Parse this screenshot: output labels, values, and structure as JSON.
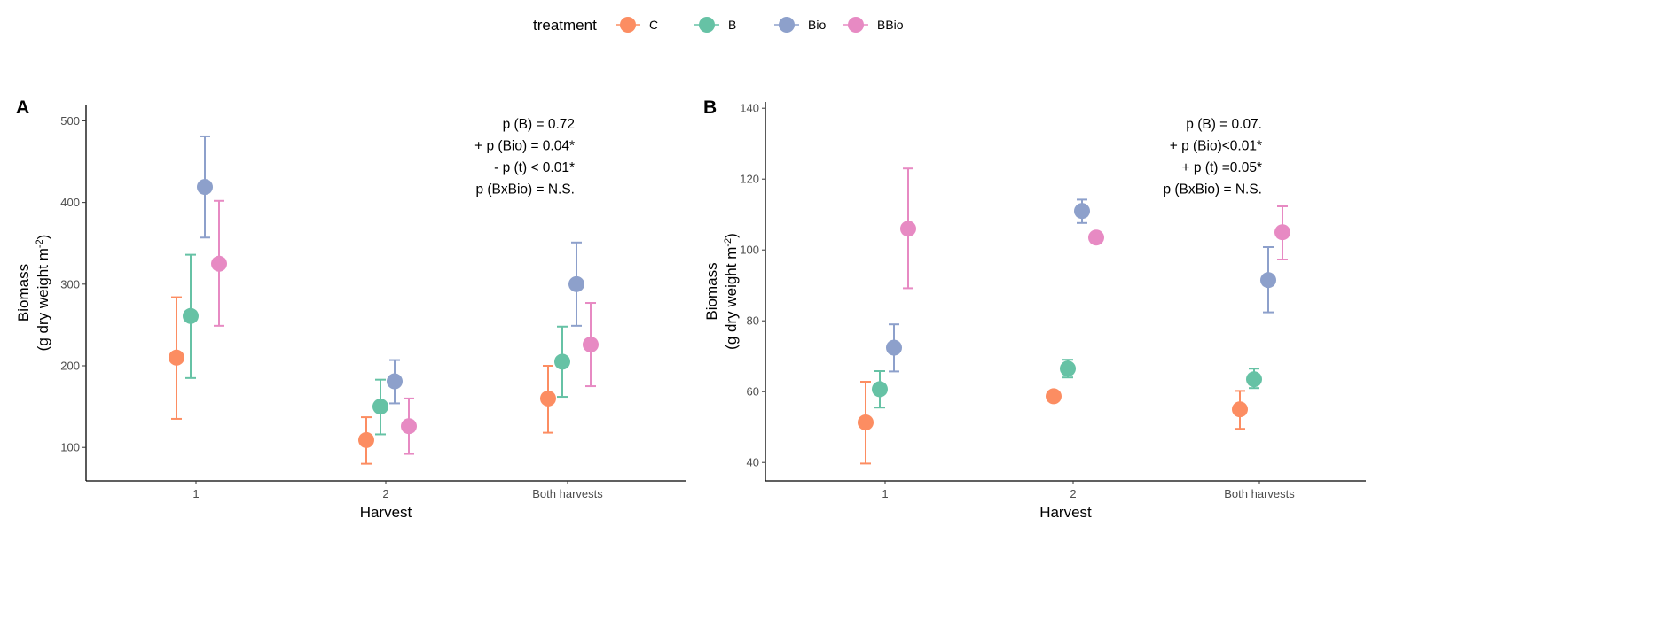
{
  "legend": {
    "title": "treatment",
    "entries": [
      {
        "label": "C",
        "color": "#FC8D62"
      },
      {
        "label": "B",
        "color": "#66C2A5"
      },
      {
        "label": "Bio",
        "color": "#8DA0CB"
      },
      {
        "label": "BBio",
        "color": "#E78AC3"
      }
    ],
    "placement": "top"
  },
  "chart_data": [
    {
      "panel": "A",
      "type": "scatter",
      "xlabel": "Harvest",
      "ylabel": "Biomass",
      "ylabel_line2": "(g dry weight m",
      "ylabel_sup": "-2",
      "ylabel_close": ")",
      "categories": [
        "1",
        "2",
        "Both harvests"
      ],
      "yticks": [
        100,
        200,
        300,
        400,
        500
      ],
      "ylim": [
        59,
        520
      ],
      "grid": false,
      "annotations": [
        "p (B) = 0.72",
        "+ p (Bio) = 0.04*",
        "- p (t) < 0.01*",
        "p (BxBio) = N.S."
      ],
      "series": [
        {
          "name": "C",
          "values": [
            210,
            109,
            160
          ],
          "lower": [
            135,
            80,
            118
          ],
          "upper": [
            284,
            137,
            200
          ]
        },
        {
          "name": "B",
          "values": [
            261,
            150,
            205
          ],
          "lower": [
            185,
            116,
            162
          ],
          "upper": [
            336,
            183,
            248
          ]
        },
        {
          "name": "Bio",
          "values": [
            419,
            181,
            300
          ],
          "lower": [
            357,
            154,
            249
          ],
          "upper": [
            481,
            207,
            351
          ]
        },
        {
          "name": "BBio",
          "values": [
            325,
            126,
            226
          ],
          "lower": [
            249,
            92,
            175
          ],
          "upper": [
            402,
            160,
            277
          ]
        }
      ]
    },
    {
      "panel": "B",
      "type": "scatter",
      "xlabel": "Harvest",
      "ylabel": "Biomass",
      "ylabel_line2": "(g dry weight m",
      "ylabel_sup": "-2",
      "ylabel_close": ")",
      "categories": [
        "1",
        "2",
        "Both harvests"
      ],
      "yticks": [
        40,
        60,
        80,
        100,
        120,
        140
      ],
      "ylim": [
        34.8,
        141.8
      ],
      "grid": false,
      "annotations": [
        "p (B) = 0.07.",
        "+ p (Bio)<0.01*",
        "+ p (t) =0.05*",
        "p (BxBio) = N.S."
      ],
      "series": [
        {
          "name": "C",
          "values": [
            51.3,
            58.7,
            55.0
          ],
          "lower": [
            39.7,
            null,
            49.5
          ],
          "upper": [
            62.8,
            null,
            60.2
          ]
        },
        {
          "name": "B",
          "values": [
            60.7,
            66.5,
            63.5
          ],
          "lower": [
            55.5,
            64.0,
            61.0
          ],
          "upper": [
            65.8,
            69.0,
            66.5
          ]
        },
        {
          "name": "Bio",
          "values": [
            72.4,
            111.0,
            91.5
          ],
          "lower": [
            65.7,
            107.6,
            82.4
          ],
          "upper": [
            79.0,
            114.2,
            100.8
          ]
        },
        {
          "name": "BBio",
          "values": [
            106.0,
            103.5,
            105.0
          ],
          "lower": [
            89.2,
            null,
            97.3
          ],
          "upper": [
            123.0,
            null,
            112.3
          ]
        }
      ]
    }
  ]
}
